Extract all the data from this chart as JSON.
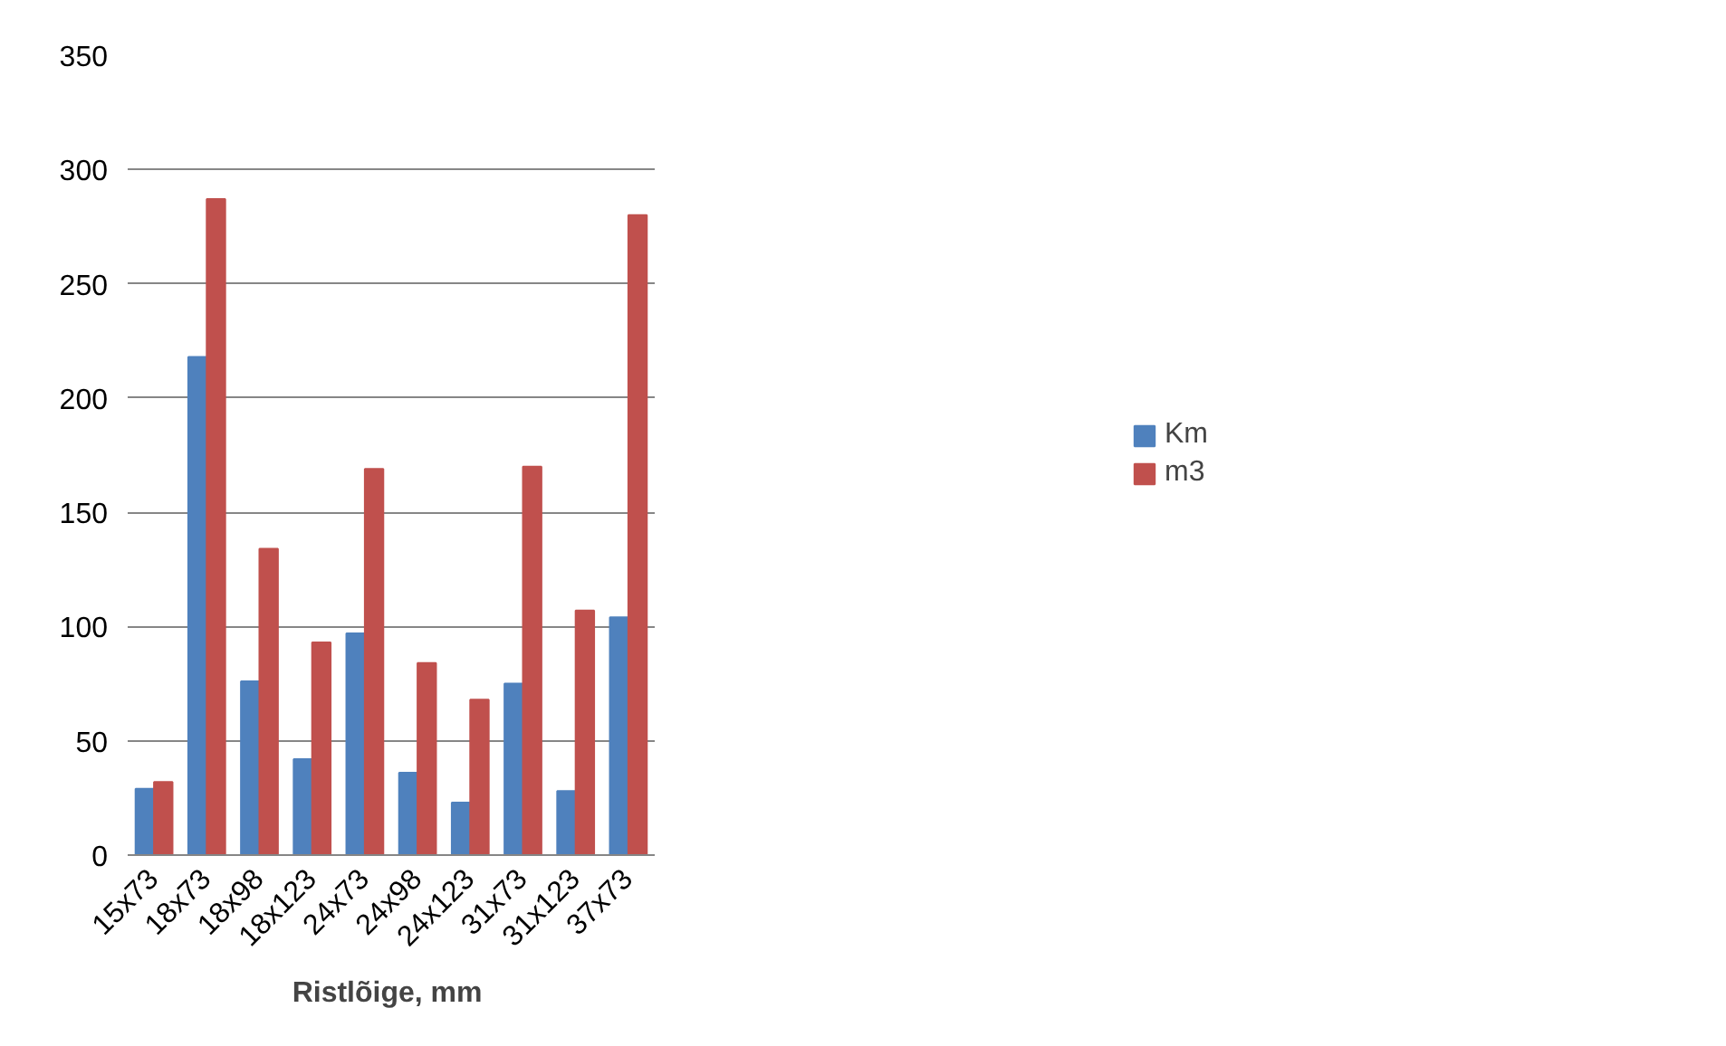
{
  "chart_data": {
    "type": "bar",
    "xlabel": "Ristlõige,  mm",
    "categories": [
      "15x73",
      "18x73",
      "18x98",
      "18x123",
      "24x73",
      "24x98",
      "24x123",
      "31x73",
      "31x123",
      "37x73"
    ],
    "series": [
      {
        "name": "Km",
        "color": "#4f81bd",
        "values": [
          29,
          218,
          76,
          42,
          97,
          36,
          23,
          75,
          28,
          104
        ]
      },
      {
        "name": "m3",
        "color": "#c0504d",
        "values": [
          32,
          287,
          134,
          93,
          169,
          84,
          68,
          170,
          107,
          280
        ]
      }
    ],
    "ylim": [
      0,
      350
    ],
    "yticks": [
      0,
      50,
      100,
      150,
      200,
      250,
      300,
      350
    ],
    "grid": "y",
    "legend": "right"
  }
}
